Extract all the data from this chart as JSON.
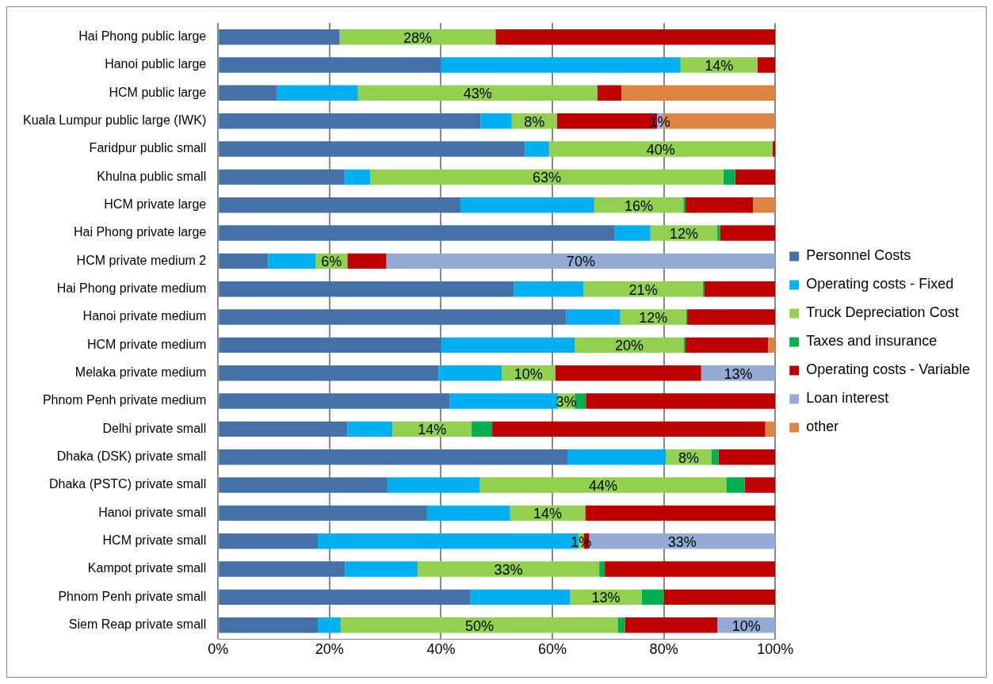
{
  "chart_data": {
    "type": "bar",
    "orientation": "horizontal",
    "stacked": true,
    "categories": [
      "Hai Phong public large",
      "Hanoi public large",
      "HCM public large",
      "Kuala Lumpur public large (IWK)",
      "Faridpur public small",
      "Khulna public small",
      "HCM private large",
      "Hai Phong private large",
      "HCM private medium 2",
      "Hai Phong private medium",
      "Hanoi private medium",
      "HCM private medium",
      "Melaka private medium",
      "Phnom Penh private medium",
      "Delhi private small",
      "Dhaka (DSK) private small",
      "Dhaka (PSTC) private small",
      "Hanoi private small",
      "HCM private small",
      "Kampot private small",
      "Phnom Penh private small",
      "Siem Reap private small"
    ],
    "series": [
      {
        "name": "Personnel Costs",
        "color": "#4472a8",
        "values": [
          21.8,
          40,
          10.6,
          47.1,
          55.1,
          22.6,
          43.5,
          71.2,
          9,
          53.1,
          62.5,
          40.1,
          39.6,
          41.6,
          23.2,
          62.7,
          30.4,
          37.5,
          17.9,
          22.8,
          45.3,
          17.9
        ]
      },
      {
        "name": "Operating costs - Fixed",
        "color": "#00b0f0",
        "values": [
          0,
          43,
          14.5,
          5.6,
          4.3,
          4.7,
          24,
          6.4,
          8.5,
          12.5,
          9.7,
          23.9,
          11.3,
          19.4,
          8.1,
          17.7,
          16.6,
          14.9,
          46.8,
          13,
          17.9,
          4.1
        ]
      },
      {
        "name": "Truck Depreciation Cost",
        "color": "#92d050",
        "values": [
          28,
          13.8,
          43,
          8.1,
          40.1,
          63.4,
          16,
          12,
          5.7,
          21.4,
          11.8,
          19.6,
          9.6,
          3,
          14.2,
          8.1,
          44.2,
          13.5,
          0.9,
          32.6,
          12.8,
          49.8
        ],
        "value_labels": [
          "28%",
          "14%",
          "43%",
          "8%",
          "40%",
          "63%",
          "16%",
          "12%",
          "6%",
          "21%",
          "12%",
          "20%",
          "10%",
          "3%",
          "14%",
          "8%",
          "44%",
          "14%",
          "1%",
          "33%",
          "13%",
          "50%"
        ]
      },
      {
        "name": "Taxes and insurance",
        "color": "#00b050",
        "values": [
          0,
          0,
          0,
          0,
          0,
          2.1,
          0.4,
          0.5,
          0,
          0.3,
          0.2,
          0.3,
          0,
          2,
          3.7,
          1.3,
          3.3,
          0,
          0,
          1,
          4,
          1.2
        ]
      },
      {
        "name": "Operating costs - Variable",
        "color": "#c00000",
        "values": [
          50.2,
          3.2,
          4.3,
          18,
          0.5,
          7.2,
          12.1,
          9.9,
          7,
          12.7,
          15.8,
          14.8,
          26.2,
          34,
          49,
          10.2,
          5.5,
          34.1,
          1,
          30.6,
          20,
          16.6
        ]
      },
      {
        "name": "Loan interest",
        "color": "#95abd5",
        "values": [
          0,
          0,
          0,
          1,
          0,
          0,
          0,
          0,
          69.8,
          0,
          0,
          0,
          13.3,
          0,
          0,
          0,
          0,
          0,
          33.4,
          0,
          0,
          10.4
        ],
        "value_labels": [
          null,
          null,
          null,
          "1%",
          null,
          null,
          null,
          null,
          "70%",
          null,
          null,
          null,
          "13%",
          null,
          null,
          null,
          null,
          null,
          "33%",
          null,
          null,
          "10%"
        ]
      },
      {
        "name": "other",
        "color": "#dd8442",
        "values": [
          0,
          0,
          27.6,
          20.2,
          0,
          0,
          4,
          0,
          0,
          0,
          0,
          1.3,
          0,
          0,
          1.8,
          0,
          0,
          0,
          0,
          0,
          0,
          0
        ]
      }
    ],
    "xlim": [
      0,
      100
    ],
    "xticks": [
      {
        "value": 0,
        "label": "0%"
      },
      {
        "value": 20,
        "label": "20%"
      },
      {
        "value": 40,
        "label": "40%"
      },
      {
        "value": 60,
        "label": "60%"
      },
      {
        "value": 80,
        "label": "80%"
      },
      {
        "value": 100,
        "label": "100%"
      }
    ],
    "grid": "x",
    "legend": "right"
  }
}
